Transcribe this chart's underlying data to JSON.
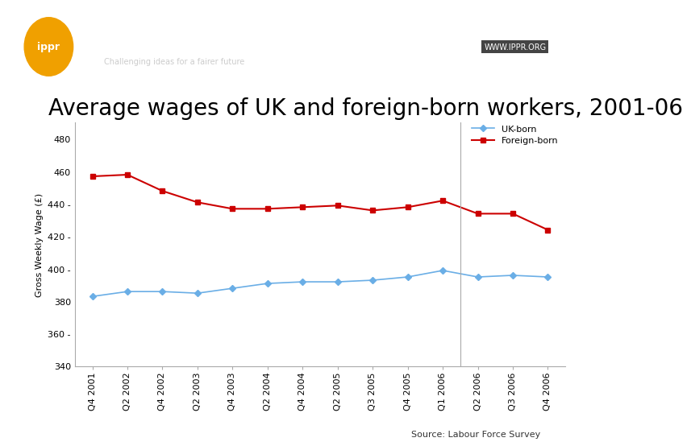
{
  "title": "Average wages of UK and foreign-born workers, 2001-06",
  "ylabel": "Gross Weekly Wage (£)",
  "source": "Source: Labour Force Survey",
  "xlabels": [
    "Q4 2001",
    "Q2 2002",
    "Q4 2002",
    "Q2 2003",
    "Q4 2003",
    "Q2 2004",
    "Q4 2004",
    "Q2 2005",
    "Q3 2005",
    "Q4 2005",
    "Q1 2006",
    "Q2 2006",
    "Q3 2006",
    "Q4 2006"
  ],
  "uk_born": [
    383,
    386,
    386,
    385,
    388,
    391,
    392,
    392,
    393,
    395,
    399,
    395,
    396,
    395
  ],
  "foreign_born": [
    457,
    458,
    448,
    441,
    437,
    437,
    438,
    439,
    436,
    438,
    442,
    434,
    434,
    424
  ],
  "uk_color": "#6aaee6",
  "foreign_color": "#cc0000",
  "bg_color": "#ffffff",
  "ylim": [
    340,
    490
  ],
  "yticks": [
    340,
    360,
    380,
    400,
    420,
    440,
    460,
    480
  ],
  "title_fontsize": 20,
  "axis_fontsize": 8,
  "legend_fontsize": 8,
  "header_dark": "#1a1a1a",
  "header_mid": "#888888",
  "header_orange": "#f0a000",
  "header_gold": "#c8a040",
  "ytick_labels": [
    "340",
    "360 -",
    "380",
    "400 -",
    "420 -",
    "440 -",
    "460",
    "480"
  ]
}
